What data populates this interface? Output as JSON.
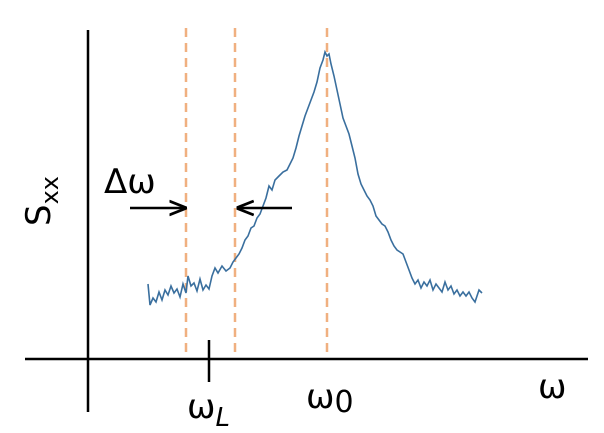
{
  "axes": {
    "y_label": {
      "main": "S",
      "sub": "xx"
    },
    "x_label": "ω"
  },
  "markers": [
    {
      "main": "ω",
      "sub": "L"
    },
    {
      "main": "ω",
      "sub": "0"
    }
  ],
  "annotation": "Δω"
}
